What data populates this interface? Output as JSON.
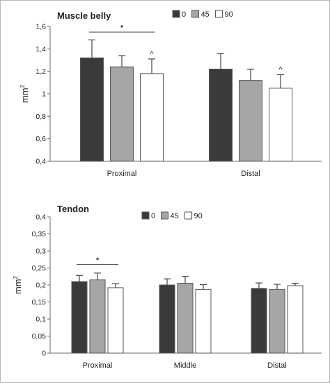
{
  "chart_data": [
    {
      "type": "bar",
      "title": "Muscle belly",
      "ylabel": "mm²",
      "ylabel_base": "mm",
      "ylabel_exp": "2",
      "ylim": [
        0.4,
        1.6
      ],
      "yticks": [
        0.4,
        0.6,
        0.8,
        1,
        1.2,
        1.4,
        1.6
      ],
      "ytick_labels": [
        "0,4",
        "0,6",
        "0,8",
        "1",
        "1,2",
        "1,4",
        "1,6"
      ],
      "categories": [
        "Proximal",
        "Distal"
      ],
      "series": [
        {
          "name": "0",
          "color": "#3a3a3a",
          "values": [
            1.32,
            1.22
          ],
          "errors": [
            0.16,
            0.14
          ]
        },
        {
          "name": "45",
          "color": "#a6a6a6",
          "values": [
            1.24,
            1.12
          ],
          "errors": [
            0.1,
            0.1
          ]
        },
        {
          "name": "90",
          "color": "#ffffff",
          "values": [
            1.18,
            1.05
          ],
          "errors": [
            0.13,
            0.12
          ]
        }
      ],
      "annotations": [
        {
          "text": "*",
          "type": "bracket",
          "category": 0,
          "from_series": 0,
          "to_series": 2,
          "y": 1.55
        },
        {
          "text": "^",
          "type": "marker",
          "category": 0,
          "series": 2
        },
        {
          "text": "^",
          "type": "marker",
          "category": 1,
          "series": 2
        }
      ],
      "legend": "top-right",
      "grid": false
    },
    {
      "type": "bar",
      "title": "Tendon",
      "ylabel": "mm²",
      "ylabel_base": "mm",
      "ylabel_exp": "2",
      "ylim": [
        0,
        0.4
      ],
      "yticks": [
        0,
        0.05,
        0.1,
        0.15,
        0.2,
        0.25,
        0.3,
        0.35,
        0.4
      ],
      "ytick_labels": [
        "0",
        "0,05",
        "0,1",
        "0,15",
        "0,2",
        "0,25",
        "0,3",
        "0,35",
        "0,4"
      ],
      "categories": [
        "Proximal",
        "Middle",
        "Distal"
      ],
      "series": [
        {
          "name": "0",
          "color": "#3a3a3a",
          "values": [
            0.21,
            0.2,
            0.19
          ],
          "errors": [
            0.018,
            0.018,
            0.016
          ]
        },
        {
          "name": "45",
          "color": "#a6a6a6",
          "values": [
            0.215,
            0.205,
            0.187
          ],
          "errors": [
            0.02,
            0.02,
            0.015
          ]
        },
        {
          "name": "90",
          "color": "#ffffff",
          "values": [
            0.192,
            0.187,
            0.198
          ],
          "errors": [
            0.012,
            0.014,
            0.007
          ]
        }
      ],
      "annotations": [
        {
          "text": "*",
          "type": "bracket",
          "category": 0,
          "from_series": 0,
          "to_series": 2,
          "y": 0.26
        }
      ],
      "legend": "top-center",
      "grid": false
    }
  ]
}
